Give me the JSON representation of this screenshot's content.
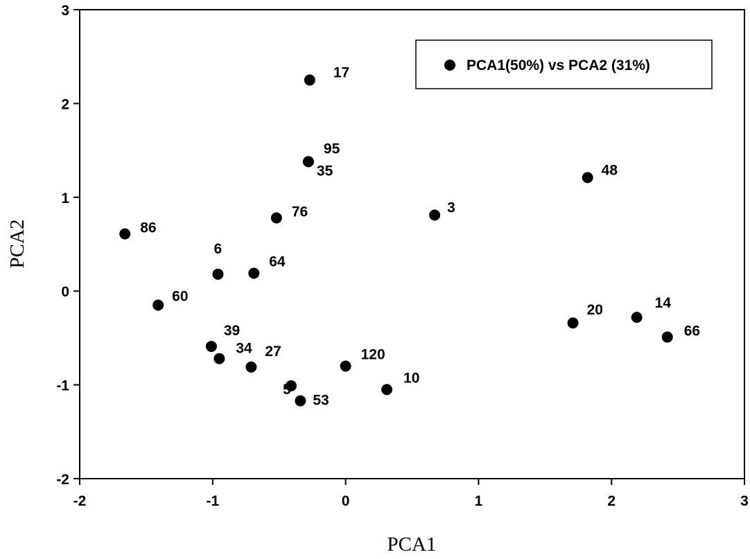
{
  "chart_data": {
    "type": "scatter",
    "title": "",
    "xlabel": "PCA1",
    "ylabel": "PCA2",
    "xlim": [
      -2,
      3
    ],
    "ylim": [
      -2,
      3
    ],
    "xticks": [
      -2,
      -1,
      0,
      1,
      2,
      3
    ],
    "yticks": [
      -2,
      -1,
      0,
      1,
      2,
      3
    ],
    "grid": false,
    "legend_position": "top-right",
    "series": [
      {
        "name": "PCA1(50%) vs PCA2 (31%)",
        "color": "#000000",
        "points": [
          {
            "label": "17",
            "x": -0.27,
            "y": 2.25
          },
          {
            "label": "95",
            "x": -0.28,
            "y": 1.38
          },
          {
            "label": "35",
            "x": -0.28,
            "y": 1.38
          },
          {
            "label": "48",
            "x": 1.82,
            "y": 1.21
          },
          {
            "label": "76",
            "x": -0.52,
            "y": 0.78
          },
          {
            "label": "3",
            "x": 0.67,
            "y": 0.81
          },
          {
            "label": "86",
            "x": -1.66,
            "y": 0.61
          },
          {
            "label": "6",
            "x": -0.96,
            "y": 0.18
          },
          {
            "label": "64",
            "x": -0.69,
            "y": 0.19
          },
          {
            "label": "60",
            "x": -1.41,
            "y": -0.15
          },
          {
            "label": "20",
            "x": 1.71,
            "y": -0.34
          },
          {
            "label": "14",
            "x": 2.19,
            "y": -0.28
          },
          {
            "label": "66",
            "x": 2.42,
            "y": -0.49
          },
          {
            "label": "39",
            "x": -1.01,
            "y": -0.59
          },
          {
            "label": "34",
            "x": -0.95,
            "y": -0.72
          },
          {
            "label": "27",
            "x": -0.71,
            "y": -0.81
          },
          {
            "label": "5",
            "x": -0.41,
            "y": -1.01
          },
          {
            "label": "120",
            "x": 0.0,
            "y": -0.8
          },
          {
            "label": "10",
            "x": 0.31,
            "y": -1.05
          },
          {
            "label": "53",
            "x": -0.34,
            "y": -1.17
          }
        ]
      }
    ]
  }
}
